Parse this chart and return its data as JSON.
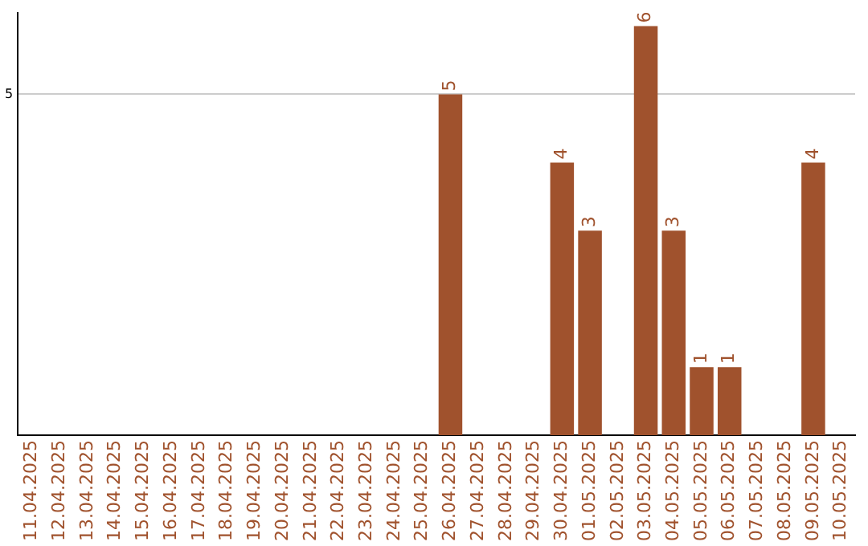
{
  "chart_data": {
    "type": "bar",
    "categories": [
      "11.04.2025",
      "12.04.2025",
      "13.04.2025",
      "14.04.2025",
      "15.04.2025",
      "16.04.2025",
      "17.04.2025",
      "18.04.2025",
      "19.04.2025",
      "20.04.2025",
      "21.04.2025",
      "22.04.2025",
      "23.04.2025",
      "24.04.2025",
      "25.04.2025",
      "26.04.2025",
      "27.04.2025",
      "28.04.2025",
      "29.04.2025",
      "30.04.2025",
      "01.05.2025",
      "02.05.2025",
      "03.05.2025",
      "04.05.2025",
      "05.05.2025",
      "06.05.2025",
      "07.05.2025",
      "08.05.2025",
      "09.05.2025",
      "10.05.2025"
    ],
    "values": [
      null,
      null,
      null,
      null,
      null,
      null,
      null,
      null,
      null,
      null,
      null,
      null,
      null,
      null,
      null,
      5,
      null,
      null,
      null,
      4,
      3,
      null,
      6,
      3,
      1,
      1,
      null,
      null,
      4,
      null
    ],
    "color": "#a0522d",
    "ylim": [
      0,
      6.2
    ],
    "yticks": [
      5
    ],
    "grid": "y",
    "data_labels": true
  }
}
